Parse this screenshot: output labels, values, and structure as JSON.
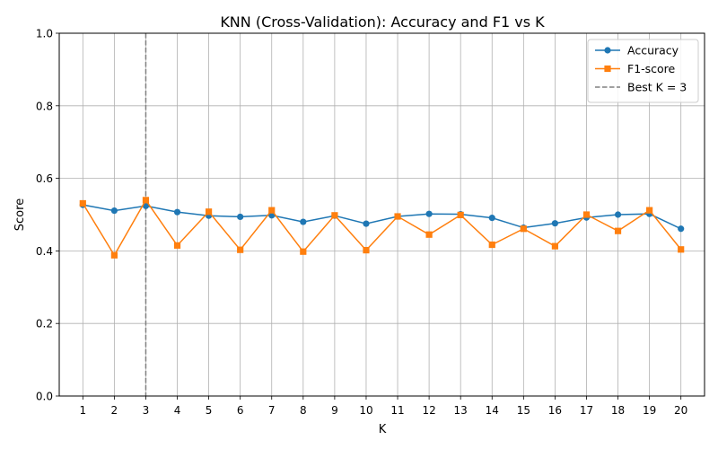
{
  "chart_data": {
    "type": "line",
    "title": "KNN (Cross-Validation): Accuracy and F1 vs K",
    "xlabel": "K",
    "ylabel": "Score",
    "x": [
      1,
      2,
      3,
      4,
      5,
      6,
      7,
      8,
      9,
      10,
      11,
      12,
      13,
      14,
      15,
      16,
      17,
      18,
      19,
      20
    ],
    "x_tick_labels": [
      "1",
      "2",
      "3",
      "4",
      "5",
      "6",
      "7",
      "8",
      "9",
      "10",
      "11",
      "12",
      "13",
      "14",
      "15",
      "16",
      "17",
      "18",
      "19",
      "20"
    ],
    "xlim": [
      0.25,
      20.75
    ],
    "ylim": [
      0.0,
      1.0
    ],
    "y_ticks": [
      0.0,
      0.2,
      0.4,
      0.6,
      0.8,
      1.0
    ],
    "y_tick_labels": [
      "0.0",
      "0.2",
      "0.4",
      "0.6",
      "0.8",
      "1.0"
    ],
    "grid": true,
    "legend_position": "upper right",
    "series": [
      {
        "name": "Accuracy",
        "color": "#1f77b4",
        "marker": "circle",
        "values": [
          0.527,
          0.511,
          0.524,
          0.507,
          0.497,
          0.494,
          0.498,
          0.48,
          0.497,
          0.475,
          0.495,
          0.502,
          0.501,
          0.491,
          0.464,
          0.476,
          0.492,
          0.5,
          0.502,
          0.461
        ]
      },
      {
        "name": "F1-score",
        "color": "#ff7f0e",
        "marker": "square",
        "values": [
          0.531,
          0.388,
          0.54,
          0.415,
          0.508,
          0.403,
          0.512,
          0.398,
          0.498,
          0.402,
          0.495,
          0.445,
          0.499,
          0.417,
          0.461,
          0.413,
          0.5,
          0.455,
          0.512,
          0.404
        ]
      }
    ],
    "reference_line": {
      "label": "Best K = 3",
      "x": 3,
      "color": "#808080",
      "style": "dashed"
    }
  }
}
